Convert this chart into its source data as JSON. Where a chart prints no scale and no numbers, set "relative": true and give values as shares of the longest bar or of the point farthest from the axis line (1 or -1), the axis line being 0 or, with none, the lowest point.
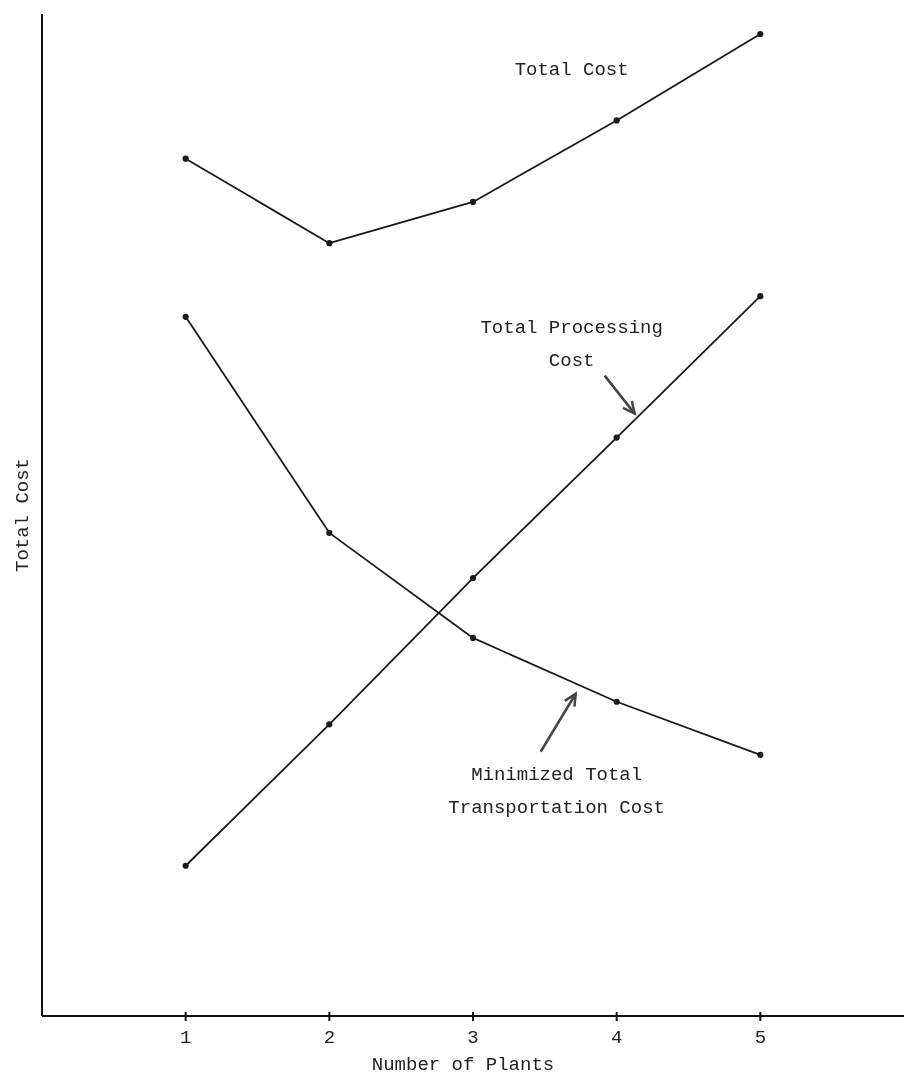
{
  "chart_data": {
    "type": "line",
    "relative": true,
    "xlabel": "Number of Plants",
    "ylabel": "Total Cost",
    "x": [
      1,
      2,
      3,
      4,
      5
    ],
    "xlim": [
      0,
      6
    ],
    "xticks": [
      1,
      2,
      3,
      4,
      5
    ],
    "marker": "circle",
    "line_style": "solid",
    "grid": false,
    "legend": false,
    "series": [
      {
        "name": "Total Cost",
        "color": "#1a1a1a",
        "values": [
          0.873,
          0.787,
          0.829,
          0.912,
          1
        ]
      },
      {
        "name": "Total Processing Cost",
        "color": "#1a1a1a",
        "values": [
          0.153,
          0.297,
          0.446,
          0.589,
          0.733
        ]
      },
      {
        "name": "Minimized Total Transportation Cost",
        "color": "#1a1a1a",
        "values": [
          0.712,
          0.492,
          0.385,
          0.32,
          0.266
        ]
      }
    ]
  }
}
